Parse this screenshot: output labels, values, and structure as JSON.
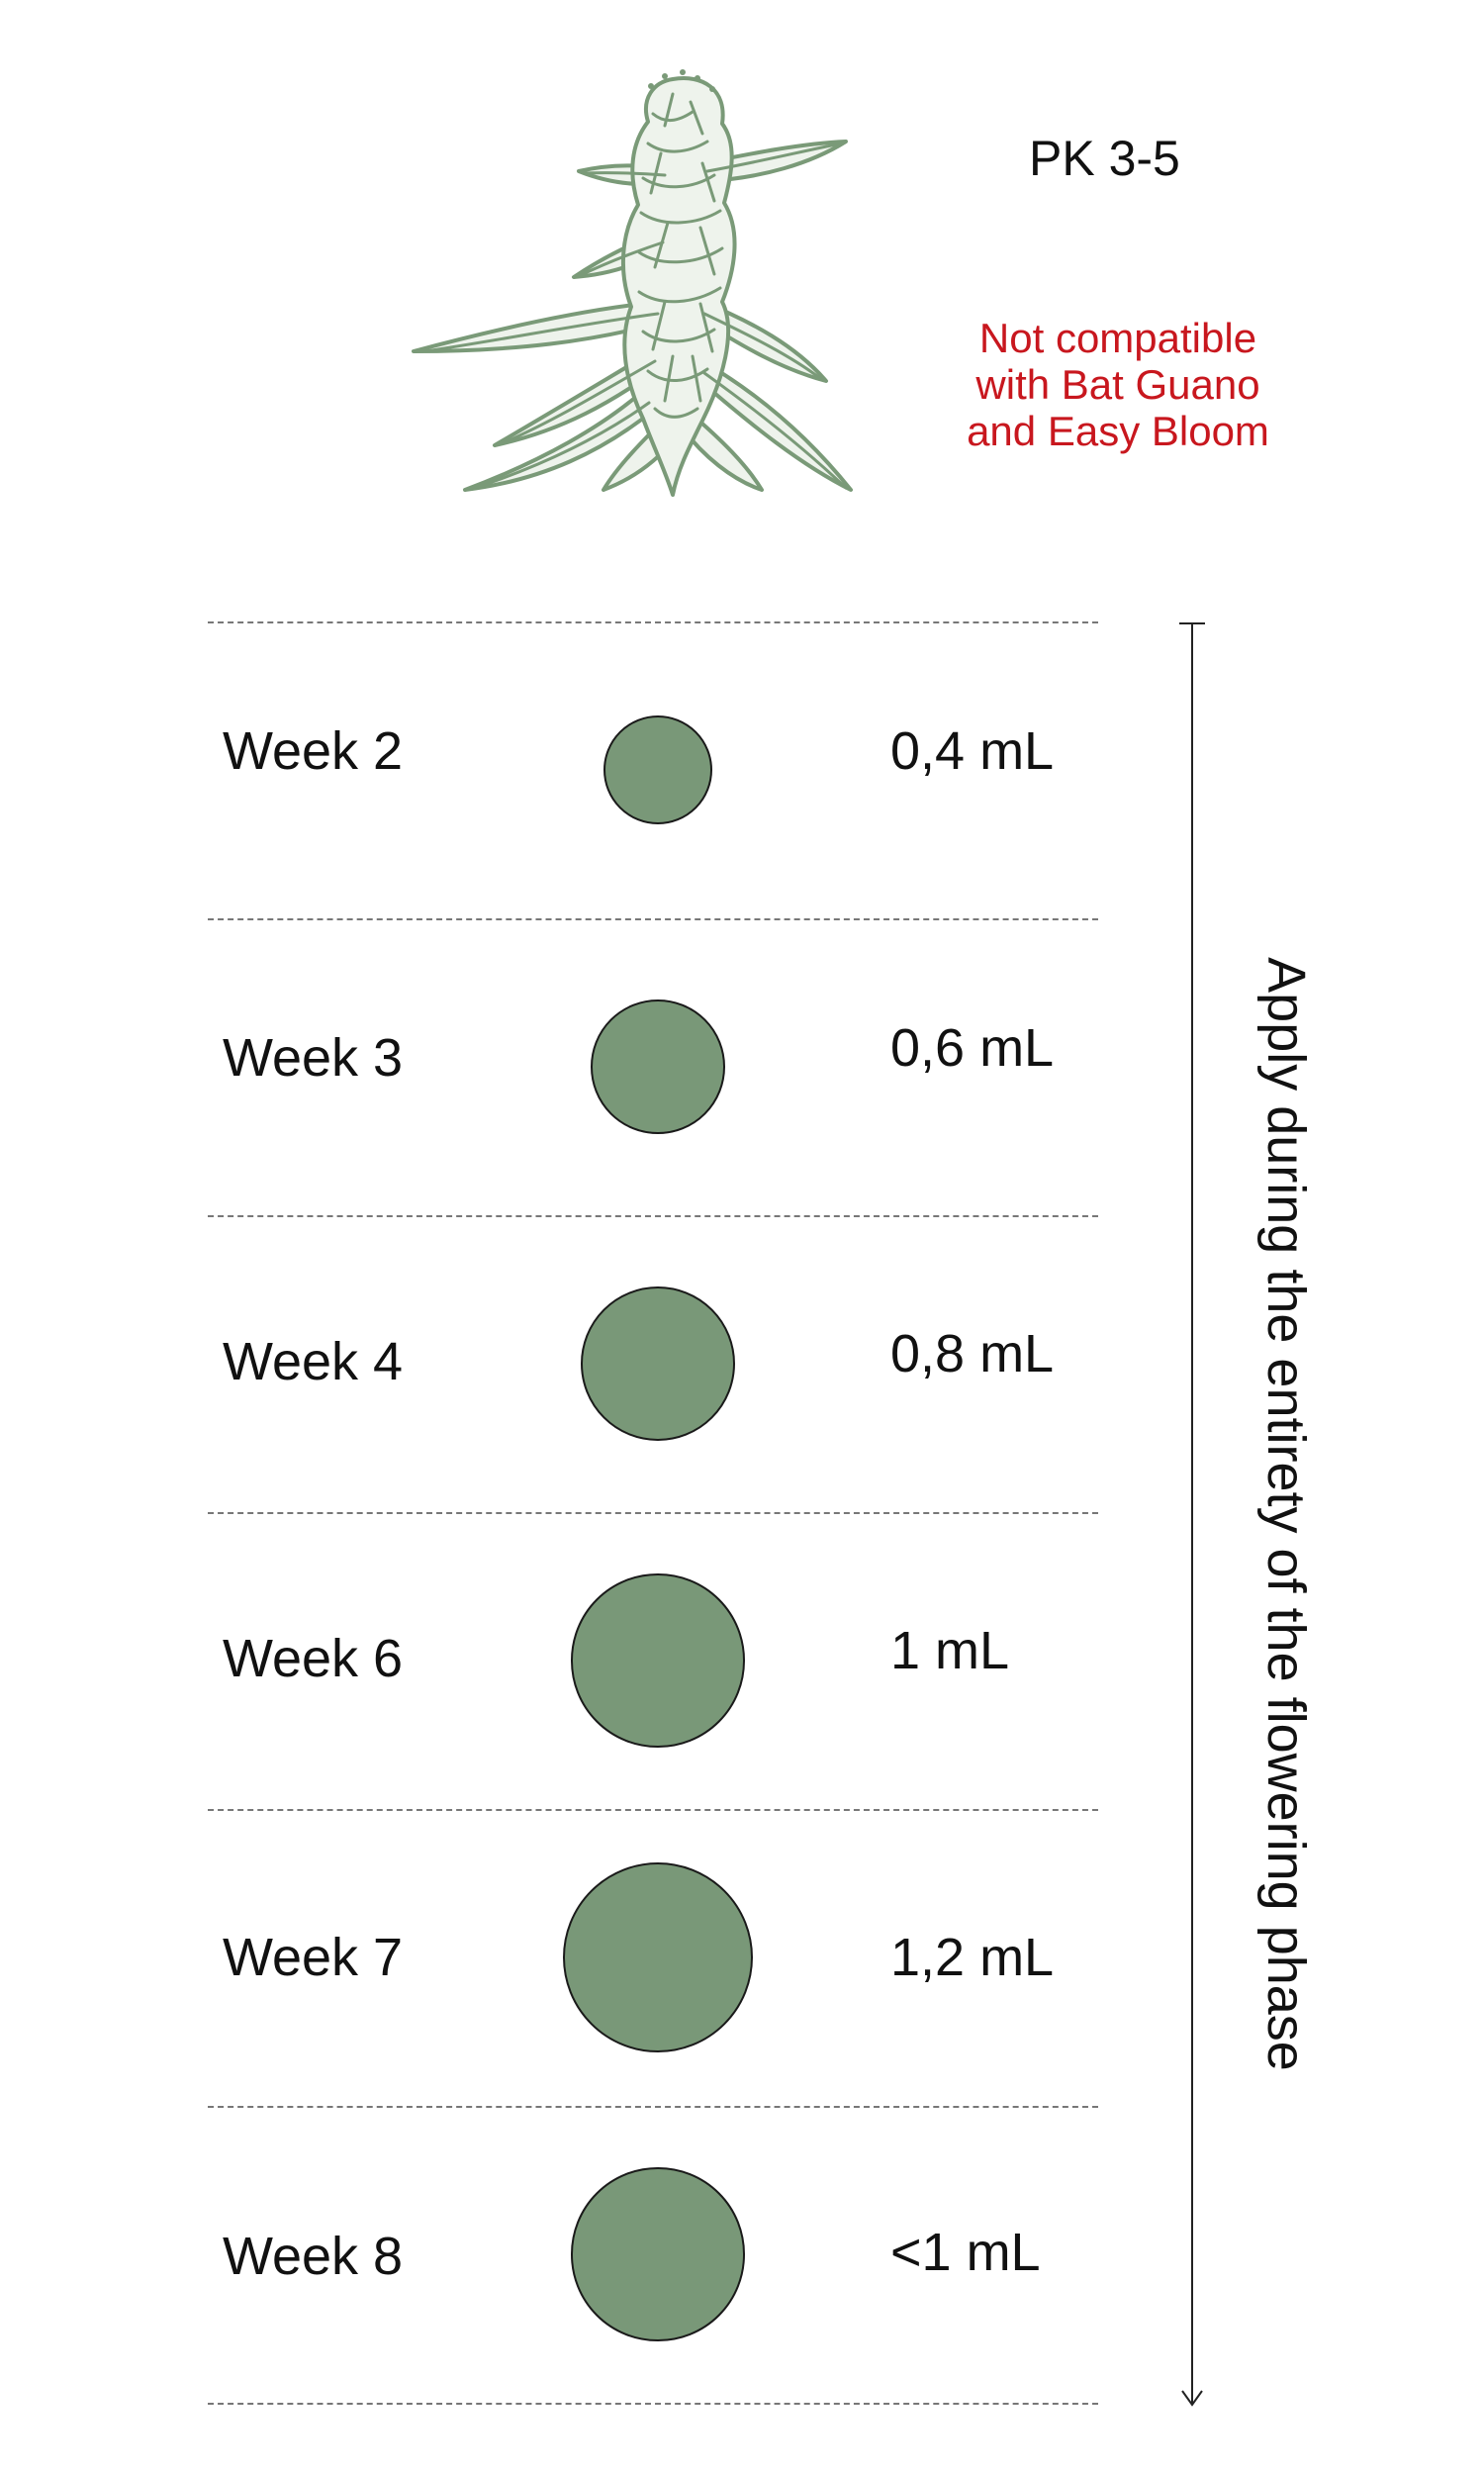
{
  "product": {
    "name": "PK 3-5",
    "warning": "Not compatible\nwith Bat Guano\nand Easy Bloom"
  },
  "colors": {
    "circle_fill": "#799878",
    "plant_line": "#7a9a78",
    "warning_text": "#c8171e"
  },
  "icons": {
    "plant": "cannabis-bud-icon"
  },
  "schedule": [
    {
      "week": "Week 2",
      "dose": "0,4 mL",
      "amount_ml": 0.4
    },
    {
      "week": "Week 3",
      "dose": "0,6 mL",
      "amount_ml": 0.6
    },
    {
      "week": "Week 4",
      "dose": "0,8 mL",
      "amount_ml": 0.8
    },
    {
      "week": "Week 6",
      "dose": "1 mL",
      "amount_ml": 1.0
    },
    {
      "week": "Week 7",
      "dose": "1,2 mL",
      "amount_ml": 1.2
    },
    {
      "week": "Week 8",
      "dose": "<1 mL",
      "amount_ml": 1.0
    }
  ],
  "timeline": {
    "label": "Apply during the entirety of the flowering phase"
  }
}
